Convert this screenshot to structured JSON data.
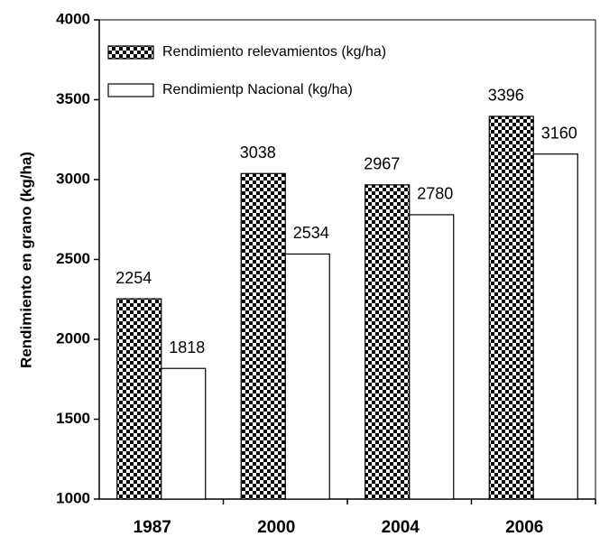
{
  "chart_data": {
    "type": "bar",
    "y_label": "Rendimiento en grano (kg/ha)",
    "categories": [
      "1987",
      "2000",
      "2004",
      "2006"
    ],
    "series": [
      {
        "name": "Rendimiento relevamientos (kg/ha)",
        "color": "#000000",
        "pattern": "checkerboard",
        "values": [
          2254,
          3038,
          2967,
          3396
        ]
      },
      {
        "name": "Rendimientp Nacional (kg/ha)",
        "color": "#ffffff",
        "values": [
          1818,
          2534,
          2780,
          3160
        ]
      }
    ],
    "ylim": [
      1000,
      4000
    ],
    "yticks": [
      1000,
      1500,
      2000,
      2500,
      3000,
      3500,
      4000
    ],
    "grid": false,
    "legend": "upper left"
  }
}
